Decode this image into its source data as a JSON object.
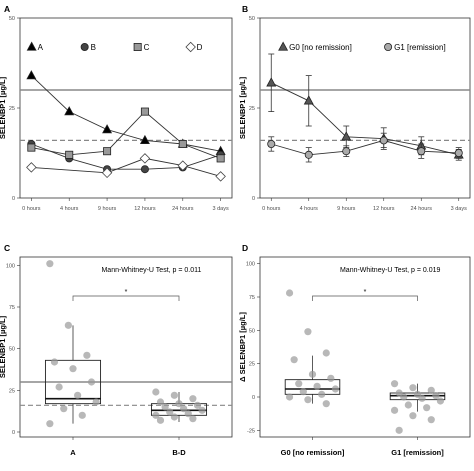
{
  "chart_data": [
    {
      "panel": "A",
      "type": "line",
      "ylabel": "SELENBP1 [µg/L]",
      "categories": [
        "0 hours",
        "4 hours",
        "9 hours",
        "12 hours",
        "24 hours",
        "3 days"
      ],
      "yticks": [
        "0",
        "25",
        "50"
      ],
      "ylim": [
        0,
        50
      ],
      "hline_solid": 30,
      "hline_dashed": 16,
      "legend_position": "top",
      "series": [
        {
          "name": "A",
          "marker": "triangle",
          "fill": "#000000",
          "values": [
            34,
            24,
            19,
            16,
            15,
            13
          ]
        },
        {
          "name": "B",
          "marker": "circle",
          "fill": "#444444",
          "values": [
            15,
            11,
            8,
            8,
            8.5,
            12
          ]
        },
        {
          "name": "C",
          "marker": "square",
          "fill": "#999999",
          "values": [
            14,
            12,
            13,
            24,
            15,
            11
          ]
        },
        {
          "name": "D",
          "marker": "diamond",
          "fill": "#ffffff",
          "values": [
            8.5,
            null,
            7,
            11,
            9,
            6
          ]
        }
      ]
    },
    {
      "panel": "B",
      "type": "line",
      "ylabel": "SELENBP1 [µg/L]",
      "categories": [
        "0 hours",
        "4 hours",
        "9 hours",
        "12 hours",
        "24 hours",
        "3 days"
      ],
      "yticks": [
        "0",
        "25",
        "50"
      ],
      "ylim": [
        0,
        50
      ],
      "hline_solid": 30,
      "hline_dashed": 16,
      "legend_position": "top",
      "series": [
        {
          "name": "G0 [no remission]",
          "marker": "triangle",
          "fill": "#555555",
          "values": [
            32,
            27,
            17,
            16.5,
            14.5,
            12
          ],
          "err": [
            8,
            7,
            3,
            3,
            2.5,
            1.5
          ]
        },
        {
          "name": "G1 [remission]",
          "marker": "circle",
          "fill": "#aaaaaa",
          "values": [
            15,
            12,
            13,
            16,
            13,
            12.5
          ],
          "err": [
            2,
            2,
            1.5,
            2,
            2,
            1.5
          ]
        }
      ]
    },
    {
      "panel": "C",
      "type": "box",
      "ylabel": "SELENBP1 [µg/L]",
      "categories": [
        "A",
        "B-D"
      ],
      "yticks": [
        "0",
        "25",
        "50",
        "75",
        "100"
      ],
      "ylim": [
        -3,
        105
      ],
      "hline_solid": 30,
      "hline_dashed": 16,
      "annotation": "Mann-Whitney-U Test, p = 0.011",
      "significance": "*",
      "boxes": [
        {
          "q1": 17,
          "median": 20,
          "q3": 43,
          "whisker_low": 5,
          "whisker_high": 64
        },
        {
          "q1": 10,
          "median": 13,
          "q3": 17,
          "whisker_low": 6,
          "whisker_high": 24
        }
      ],
      "points": [
        [
          101,
          64,
          46,
          42,
          38,
          30,
          27,
          22,
          18,
          14,
          10,
          5
        ],
        [
          24,
          22,
          20,
          18,
          17,
          16,
          15,
          14,
          13,
          12,
          11,
          10,
          9,
          8,
          7
        ]
      ]
    },
    {
      "panel": "D",
      "type": "box",
      "ylabel": "Δ SELENBP1 [µg/L]",
      "categories": [
        "G0 [no remission]",
        "G1 [remission]"
      ],
      "yticks": [
        "-25",
        "0",
        "25",
        "50",
        "75",
        "100"
      ],
      "ylim": [
        -30,
        105
      ],
      "annotation": "Mann-Whitney-U Test, p = 0.019",
      "significance": "*",
      "boxes": [
        {
          "q1": 2,
          "median": 6,
          "q3": 13,
          "whisker_low": -5,
          "whisker_high": 31
        },
        {
          "q1": -2,
          "median": 1,
          "q3": 3,
          "whisker_low": -11,
          "whisker_high": 10
        }
      ],
      "points": [
        [
          78,
          49,
          33,
          28,
          17,
          14,
          10,
          8,
          6,
          4,
          2,
          0,
          -2,
          -5
        ],
        [
          10,
          7,
          5,
          3,
          2,
          1,
          0,
          -1,
          -3,
          -6,
          -8,
          -10,
          -14,
          -17,
          -25
        ]
      ]
    }
  ]
}
